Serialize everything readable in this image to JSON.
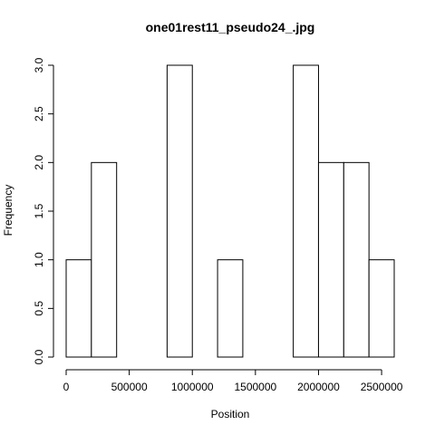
{
  "chart_data": {
    "type": "bar",
    "title": "one01rest11_pseudo24_.jpg",
    "xlabel": "Position",
    "ylabel": "Frequency",
    "bin_width": 200000,
    "bins": [
      {
        "start": 0,
        "end": 200000,
        "count": 1
      },
      {
        "start": 200000,
        "end": 400000,
        "count": 2
      },
      {
        "start": 400000,
        "end": 600000,
        "count": 0
      },
      {
        "start": 600000,
        "end": 800000,
        "count": 0
      },
      {
        "start": 800000,
        "end": 1000000,
        "count": 3
      },
      {
        "start": 1000000,
        "end": 1200000,
        "count": 0
      },
      {
        "start": 1200000,
        "end": 1400000,
        "count": 1
      },
      {
        "start": 1400000,
        "end": 1600000,
        "count": 0
      },
      {
        "start": 1600000,
        "end": 1800000,
        "count": 0
      },
      {
        "start": 1800000,
        "end": 2000000,
        "count": 3
      },
      {
        "start": 2000000,
        "end": 2200000,
        "count": 2
      },
      {
        "start": 2200000,
        "end": 2400000,
        "count": 2
      },
      {
        "start": 2400000,
        "end": 2600000,
        "count": 1
      }
    ],
    "xlim": [
      0,
      2600000
    ],
    "ylim": [
      0,
      3
    ],
    "x_ticks": [
      0,
      500000,
      1000000,
      1500000,
      2000000,
      2500000
    ],
    "x_tick_labels": [
      "0",
      "500000",
      "1000000",
      "1500000",
      "2000000",
      "2500000"
    ],
    "y_ticks": [
      0,
      0.5,
      1,
      1.5,
      2,
      2.5,
      3
    ],
    "y_tick_labels": [
      "0.0",
      "0.5",
      "1.0",
      "1.5",
      "2.0",
      "2.5",
      "3.0"
    ],
    "bar_fill": "#ffffff",
    "bar_stroke": "#000000",
    "grid": false,
    "legend": "none"
  }
}
